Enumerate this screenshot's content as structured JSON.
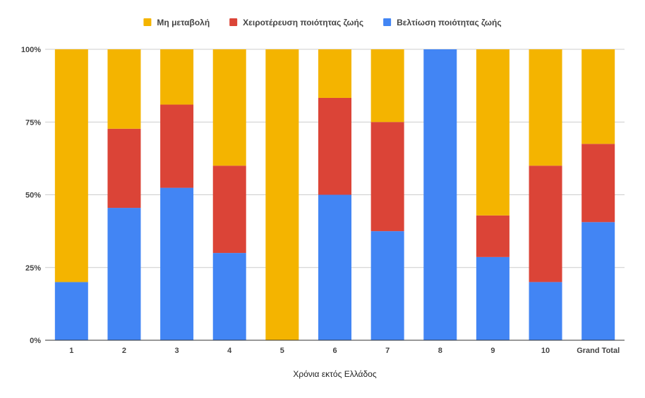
{
  "chart_data": {
    "type": "bar",
    "stacked": true,
    "normalized": true,
    "title": "",
    "xlabel": "Χρόνια εκτός Ελλάδος",
    "ylabel": "",
    "ylim": [
      0,
      100
    ],
    "y_ticks": [
      "0%",
      "25%",
      "50%",
      "75%",
      "100%"
    ],
    "y_tick_values": [
      0,
      25,
      50,
      75,
      100
    ],
    "categories": [
      "1",
      "2",
      "3",
      "4",
      "5",
      "6",
      "7",
      "8",
      "9",
      "10",
      "Grand Total"
    ],
    "legend_position": "top",
    "legend_order": [
      0,
      1,
      2
    ],
    "series": [
      {
        "name": "Μη μεταβολή",
        "color": "#F4B400",
        "values": [
          80,
          27.3,
          19,
          40,
          100,
          16.7,
          25,
          0,
          57.1,
          40,
          32.5
        ]
      },
      {
        "name": "Χειροτέρευση ποιότητας ζωής",
        "color": "#DB4437",
        "values": [
          0,
          27.2,
          28.6,
          30,
          0,
          33.3,
          37.5,
          0,
          14.3,
          40,
          26.9
        ]
      },
      {
        "name": "Βελτίωση ποιότητας ζωής",
        "color": "#4285F4",
        "values": [
          20,
          45.5,
          52.4,
          30,
          0,
          50,
          37.5,
          100,
          28.6,
          20,
          40.6
        ]
      }
    ],
    "grid": true
  }
}
